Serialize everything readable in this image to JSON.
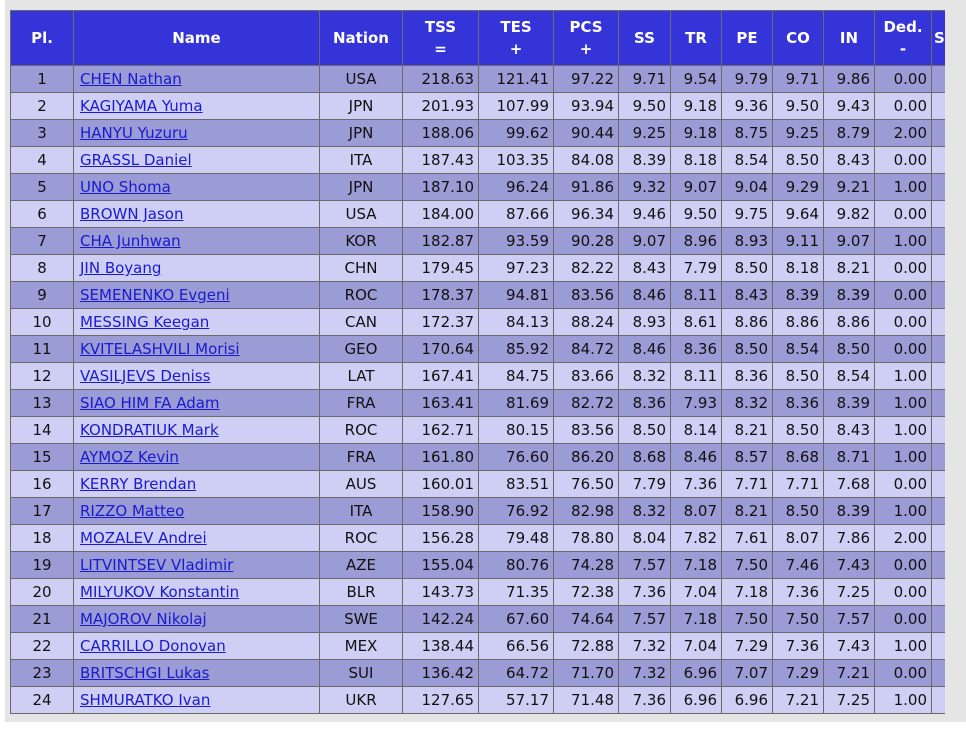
{
  "table": {
    "columns": [
      {
        "label": "Pl.",
        "sym": ""
      },
      {
        "label": "Name",
        "sym": ""
      },
      {
        "label": "Nation",
        "sym": ""
      },
      {
        "label": "TSS",
        "sym": "="
      },
      {
        "label": "TES",
        "sym": "+"
      },
      {
        "label": "PCS",
        "sym": "+"
      },
      {
        "label": "SS",
        "sym": ""
      },
      {
        "label": "TR",
        "sym": ""
      },
      {
        "label": "PE",
        "sym": ""
      },
      {
        "label": "CO",
        "sym": ""
      },
      {
        "label": "IN",
        "sym": ""
      },
      {
        "label": "Ded.",
        "sym": "-"
      },
      {
        "label": "S",
        "sym": ""
      }
    ],
    "rows": [
      {
        "rank": "1",
        "name": "CHEN Nathan",
        "nation": "USA",
        "tss": "218.63",
        "tes": "121.41",
        "pcs": "97.22",
        "ss": "9.71",
        "tr": "9.54",
        "pe": "9.79",
        "co": "9.71",
        "in": "9.86",
        "ded": "0.00"
      },
      {
        "rank": "2",
        "name": "KAGIYAMA Yuma",
        "nation": "JPN",
        "tss": "201.93",
        "tes": "107.99",
        "pcs": "93.94",
        "ss": "9.50",
        "tr": "9.18",
        "pe": "9.36",
        "co": "9.50",
        "in": "9.43",
        "ded": "0.00"
      },
      {
        "rank": "3",
        "name": "HANYU Yuzuru",
        "nation": "JPN",
        "tss": "188.06",
        "tes": "99.62",
        "pcs": "90.44",
        "ss": "9.25",
        "tr": "9.18",
        "pe": "8.75",
        "co": "9.25",
        "in": "8.79",
        "ded": "2.00"
      },
      {
        "rank": "4",
        "name": "GRASSL Daniel",
        "nation": "ITA",
        "tss": "187.43",
        "tes": "103.35",
        "pcs": "84.08",
        "ss": "8.39",
        "tr": "8.18",
        "pe": "8.54",
        "co": "8.50",
        "in": "8.43",
        "ded": "0.00"
      },
      {
        "rank": "5",
        "name": "UNO Shoma",
        "nation": "JPN",
        "tss": "187.10",
        "tes": "96.24",
        "pcs": "91.86",
        "ss": "9.32",
        "tr": "9.07",
        "pe": "9.04",
        "co": "9.29",
        "in": "9.21",
        "ded": "1.00"
      },
      {
        "rank": "6",
        "name": "BROWN Jason",
        "nation": "USA",
        "tss": "184.00",
        "tes": "87.66",
        "pcs": "96.34",
        "ss": "9.46",
        "tr": "9.50",
        "pe": "9.75",
        "co": "9.64",
        "in": "9.82",
        "ded": "0.00"
      },
      {
        "rank": "7",
        "name": "CHA Junhwan",
        "nation": "KOR",
        "tss": "182.87",
        "tes": "93.59",
        "pcs": "90.28",
        "ss": "9.07",
        "tr": "8.96",
        "pe": "8.93",
        "co": "9.11",
        "in": "9.07",
        "ded": "1.00"
      },
      {
        "rank": "8",
        "name": "JIN Boyang",
        "nation": "CHN",
        "tss": "179.45",
        "tes": "97.23",
        "pcs": "82.22",
        "ss": "8.43",
        "tr": "7.79",
        "pe": "8.50",
        "co": "8.18",
        "in": "8.21",
        "ded": "0.00"
      },
      {
        "rank": "9",
        "name": "SEMENENKO Evgeni",
        "nation": "ROC",
        "tss": "178.37",
        "tes": "94.81",
        "pcs": "83.56",
        "ss": "8.46",
        "tr": "8.11",
        "pe": "8.43",
        "co": "8.39",
        "in": "8.39",
        "ded": "0.00"
      },
      {
        "rank": "10",
        "name": "MESSING Keegan",
        "nation": "CAN",
        "tss": "172.37",
        "tes": "84.13",
        "pcs": "88.24",
        "ss": "8.93",
        "tr": "8.61",
        "pe": "8.86",
        "co": "8.86",
        "in": "8.86",
        "ded": "0.00"
      },
      {
        "rank": "11",
        "name": "KVITELASHVILI Morisi",
        "nation": "GEO",
        "tss": "170.64",
        "tes": "85.92",
        "pcs": "84.72",
        "ss": "8.46",
        "tr": "8.36",
        "pe": "8.50",
        "co": "8.54",
        "in": "8.50",
        "ded": "0.00"
      },
      {
        "rank": "12",
        "name": "VASILJEVS Deniss",
        "nation": "LAT",
        "tss": "167.41",
        "tes": "84.75",
        "pcs": "83.66",
        "ss": "8.32",
        "tr": "8.11",
        "pe": "8.36",
        "co": "8.50",
        "in": "8.54",
        "ded": "1.00"
      },
      {
        "rank": "13",
        "name": "SIAO HIM FA Adam",
        "nation": "FRA",
        "tss": "163.41",
        "tes": "81.69",
        "pcs": "82.72",
        "ss": "8.36",
        "tr": "7.93",
        "pe": "8.32",
        "co": "8.36",
        "in": "8.39",
        "ded": "1.00"
      },
      {
        "rank": "14",
        "name": "KONDRATIUK Mark",
        "nation": "ROC",
        "tss": "162.71",
        "tes": "80.15",
        "pcs": "83.56",
        "ss": "8.50",
        "tr": "8.14",
        "pe": "8.21",
        "co": "8.50",
        "in": "8.43",
        "ded": "1.00"
      },
      {
        "rank": "15",
        "name": "AYMOZ Kevin",
        "nation": "FRA",
        "tss": "161.80",
        "tes": "76.60",
        "pcs": "86.20",
        "ss": "8.68",
        "tr": "8.46",
        "pe": "8.57",
        "co": "8.68",
        "in": "8.71",
        "ded": "1.00"
      },
      {
        "rank": "16",
        "name": "KERRY Brendan",
        "nation": "AUS",
        "tss": "160.01",
        "tes": "83.51",
        "pcs": "76.50",
        "ss": "7.79",
        "tr": "7.36",
        "pe": "7.71",
        "co": "7.71",
        "in": "7.68",
        "ded": "0.00"
      },
      {
        "rank": "17",
        "name": "RIZZO Matteo",
        "nation": "ITA",
        "tss": "158.90",
        "tes": "76.92",
        "pcs": "82.98",
        "ss": "8.32",
        "tr": "8.07",
        "pe": "8.21",
        "co": "8.50",
        "in": "8.39",
        "ded": "1.00"
      },
      {
        "rank": "18",
        "name": "MOZALEV Andrei",
        "nation": "ROC",
        "tss": "156.28",
        "tes": "79.48",
        "pcs": "78.80",
        "ss": "8.04",
        "tr": "7.82",
        "pe": "7.61",
        "co": "8.07",
        "in": "7.86",
        "ded": "2.00"
      },
      {
        "rank": "19",
        "name": "LITVINTSEV Vladimir",
        "nation": "AZE",
        "tss": "155.04",
        "tes": "80.76",
        "pcs": "74.28",
        "ss": "7.57",
        "tr": "7.18",
        "pe": "7.50",
        "co": "7.46",
        "in": "7.43",
        "ded": "0.00"
      },
      {
        "rank": "20",
        "name": "MILYUKOV Konstantin",
        "nation": "BLR",
        "tss": "143.73",
        "tes": "71.35",
        "pcs": "72.38",
        "ss": "7.36",
        "tr": "7.04",
        "pe": "7.18",
        "co": "7.36",
        "in": "7.25",
        "ded": "0.00"
      },
      {
        "rank": "21",
        "name": "MAJOROV Nikolaj",
        "nation": "SWE",
        "tss": "142.24",
        "tes": "67.60",
        "pcs": "74.64",
        "ss": "7.57",
        "tr": "7.18",
        "pe": "7.50",
        "co": "7.50",
        "in": "7.57",
        "ded": "0.00"
      },
      {
        "rank": "22",
        "name": "CARRILLO Donovan",
        "nation": "MEX",
        "tss": "138.44",
        "tes": "66.56",
        "pcs": "72.88",
        "ss": "7.32",
        "tr": "7.04",
        "pe": "7.29",
        "co": "7.36",
        "in": "7.43",
        "ded": "1.00"
      },
      {
        "rank": "23",
        "name": "BRITSCHGI Lukas",
        "nation": "SUI",
        "tss": "136.42",
        "tes": "64.72",
        "pcs": "71.70",
        "ss": "7.32",
        "tr": "6.96",
        "pe": "7.07",
        "co": "7.29",
        "in": "7.21",
        "ded": "0.00"
      },
      {
        "rank": "24",
        "name": "SHMURATKO Ivan",
        "nation": "UKR",
        "tss": "127.65",
        "tes": "57.17",
        "pcs": "71.48",
        "ss": "7.36",
        "tr": "6.96",
        "pe": "6.96",
        "co": "7.21",
        "in": "7.25",
        "ded": "1.00"
      }
    ]
  }
}
